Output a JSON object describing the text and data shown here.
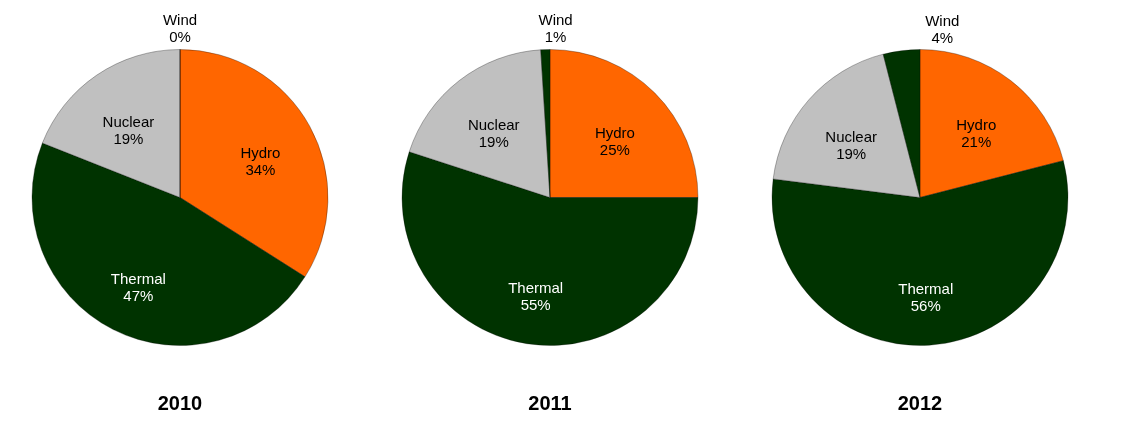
{
  "chart_data": [
    {
      "type": "pie",
      "title": "2010",
      "categories": [
        "Hydro",
        "Thermal",
        "Nuclear",
        "Wind"
      ],
      "values": [
        34,
        47,
        19,
        0
      ],
      "value_labels": [
        "34%",
        "47%",
        "19%",
        "0%"
      ],
      "colors": [
        "#ff6600",
        "#003300",
        "#c0c0c0",
        "#003300"
      ]
    },
    {
      "type": "pie",
      "title": "2011",
      "categories": [
        "Hydro",
        "Thermal",
        "Nuclear",
        "Wind"
      ],
      "values": [
        25,
        55,
        19,
        1
      ],
      "value_labels": [
        "25%",
        "55%",
        "19%",
        "1%"
      ],
      "colors": [
        "#ff6600",
        "#003300",
        "#c0c0c0",
        "#003300"
      ]
    },
    {
      "type": "pie",
      "title": "2012",
      "categories": [
        "Hydro",
        "Thermal",
        "Nuclear",
        "Wind"
      ],
      "values": [
        21,
        56,
        19,
        4
      ],
      "value_labels": [
        "21%",
        "56%",
        "19%",
        "4%"
      ],
      "colors": [
        "#ff6600",
        "#003300",
        "#c0c0c0",
        "#003300"
      ]
    }
  ]
}
